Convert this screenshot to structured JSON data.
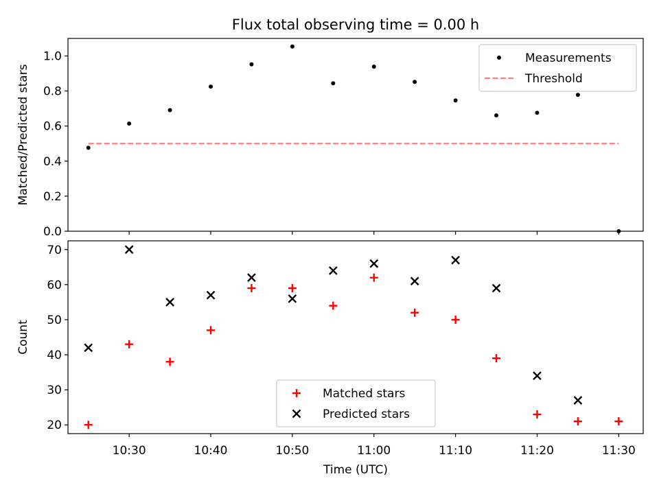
{
  "figure": {
    "title": "Flux total observing time = 0.00 h",
    "xlabel": "Time (UTC)"
  },
  "chart_data": [
    {
      "type": "scatter",
      "ylabel": "Matched/Predicted stars",
      "ylim": [
        0,
        1.1
      ],
      "yticks": [
        "0.0",
        "0.2",
        "0.4",
        "0.6",
        "0.8",
        "1.0"
      ],
      "x_ticks": [
        "10:30",
        "10:40",
        "10:50",
        "11:00",
        "11:10",
        "11:20",
        "11:30"
      ],
      "x_range": [
        "10:22:30",
        "11:33:00"
      ],
      "series": [
        {
          "name": "Measurements",
          "marker": "dot",
          "color": "#000000",
          "x": [
            "10:25",
            "10:30",
            "10:35",
            "10:40",
            "10:45",
            "10:50",
            "10:55",
            "11:00",
            "11:05",
            "11:10",
            "11:15",
            "11:20",
            "11:25",
            "11:30"
          ],
          "y": [
            0.476,
            0.614,
            0.691,
            0.825,
            0.952,
            1.054,
            0.844,
            0.939,
            0.852,
            0.746,
            0.661,
            0.676,
            0.778,
            0.0
          ]
        },
        {
          "name": "Threshold",
          "style": "dashed-line",
          "color": "#ff7f7f",
          "x": [
            "10:25",
            "11:30"
          ],
          "y": [
            0.5,
            0.5
          ]
        }
      ],
      "legend": "top-right"
    },
    {
      "type": "scatter",
      "ylabel": "Count",
      "ylim": [
        17.5,
        72.5
      ],
      "yticks": [
        "20",
        "30",
        "40",
        "50",
        "60",
        "70"
      ],
      "x_ticks": [
        "10:30",
        "10:40",
        "10:50",
        "11:00",
        "11:10",
        "11:20",
        "11:30"
      ],
      "x_range": [
        "10:22:30",
        "11:33:00"
      ],
      "series": [
        {
          "name": "Matched stars",
          "marker": "plus",
          "color": "#ff0000",
          "x": [
            "10:25",
            "10:30",
            "10:35",
            "10:40",
            "10:45",
            "10:50",
            "10:55",
            "11:00",
            "11:05",
            "11:10",
            "11:15",
            "11:20",
            "11:25",
            "11:30"
          ],
          "y": [
            20,
            43,
            38,
            47,
            59,
            59,
            54,
            62,
            52,
            50,
            39,
            23,
            21,
            21
          ]
        },
        {
          "name": "Predicted stars",
          "marker": "x",
          "color": "#000000",
          "x": [
            "10:25",
            "10:30",
            "10:35",
            "10:40",
            "10:45",
            "10:50",
            "10:55",
            "11:00",
            "11:05",
            "11:10",
            "11:15",
            "11:20",
            "11:25"
          ],
          "y": [
            42,
            70,
            55,
            57,
            62,
            56,
            64,
            66,
            61,
            67,
            59,
            34,
            27
          ]
        }
      ],
      "legend": "lower-center"
    }
  ]
}
